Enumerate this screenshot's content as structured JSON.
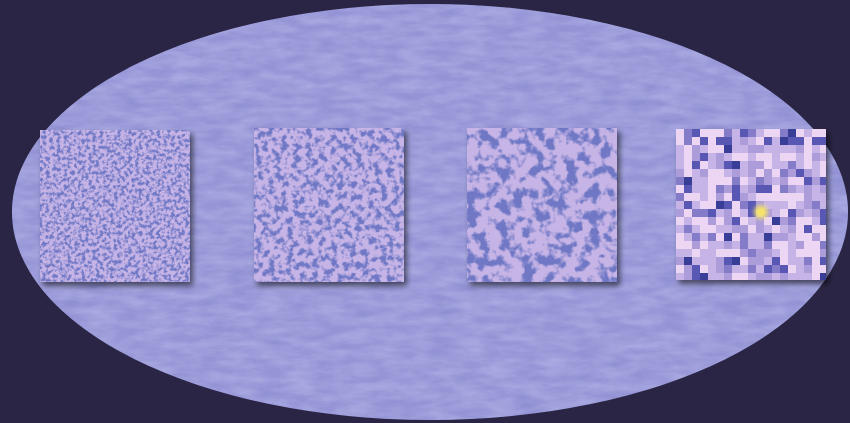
{
  "scene": {
    "description_visible_text": "",
    "colors": {
      "background": "#2a2544",
      "sky_map_base": "#8a8ad0",
      "sky_map_dark": "#5a5aa8",
      "sky_map_light": "#b0aee6",
      "panel_base": "#c7b4e6",
      "panel_dark": "#28308e",
      "panel_light": "#f1d8f5",
      "shadow": "#1f1b38",
      "bright_source": "#f5e36a"
    },
    "panels": [
      {
        "id": "panel-1",
        "speck_scale": "fine"
      },
      {
        "id": "panel-2",
        "speck_scale": "medium-fine"
      },
      {
        "id": "panel-3",
        "speck_scale": "medium"
      },
      {
        "id": "panel-4",
        "speck_scale": "coarse",
        "has_bright_source": true
      }
    ]
  }
}
